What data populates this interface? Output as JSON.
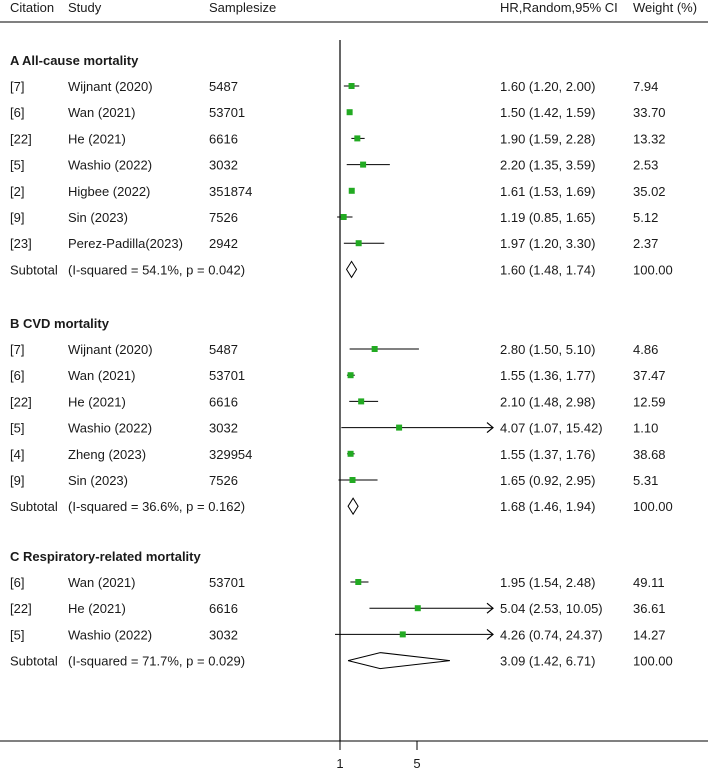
{
  "chart_data": {
    "type": "forest",
    "headers": {
      "citation": "Citation",
      "study": "Study",
      "samplesize": "Samplesize",
      "effect": "HR,Random,95% CI",
      "weight": "Weight (%)"
    },
    "x_axis": {
      "ticks": [
        1,
        5
      ],
      "reference_line": 1
    },
    "sections": [
      {
        "title": "A  All-cause mortality",
        "studies": [
          {
            "citation": "[7]",
            "study": "Wijnant (2020)",
            "samplesize": "5487",
            "hr": 1.6,
            "lo": 1.2,
            "hi": 2.0,
            "ci_text": "1.60 (1.20, 2.00)",
            "weight": "7.94"
          },
          {
            "citation": "[6]",
            "study": "Wan (2021)",
            "samplesize": "53701",
            "hr": 1.5,
            "lo": 1.42,
            "hi": 1.59,
            "ci_text": "1.50 (1.42, 1.59)",
            "weight": "33.70"
          },
          {
            "citation": "[22]",
            "study": "He (2021)",
            "samplesize": "6616",
            "hr": 1.9,
            "lo": 1.59,
            "hi": 2.28,
            "ci_text": "1.90 (1.59, 2.28)",
            "weight": "13.32"
          },
          {
            "citation": "[5]",
            "study": "Washio (2022)",
            "samplesize": "3032",
            "hr": 2.2,
            "lo": 1.35,
            "hi": 3.59,
            "ci_text": "2.20 (1.35, 3.59)",
            "weight": "2.53"
          },
          {
            "citation": "[2]",
            "study": "Higbee (2022)",
            "samplesize": "351874",
            "hr": 1.61,
            "lo": 1.53,
            "hi": 1.69,
            "ci_text": "1.61 (1.53, 1.69)",
            "weight": "35.02"
          },
          {
            "citation": "[9]",
            "study": "Sin (2023)",
            "samplesize": "7526",
            "hr": 1.19,
            "lo": 0.85,
            "hi": 1.65,
            "ci_text": "1.19 (0.85, 1.65)",
            "weight": "5.12"
          },
          {
            "citation": "[23]",
            "study": "Perez-Padilla(2023)",
            "samplesize": "2942",
            "hr": 1.97,
            "lo": 1.2,
            "hi": 3.3,
            "ci_text": "1.97 (1.20, 3.30)",
            "weight": "2.37"
          }
        ],
        "subtotal": {
          "label": "Subtotal",
          "stats": "(I-squared = 54.1%, p = 0.042)",
          "hr": 1.6,
          "lo": 1.48,
          "hi": 1.74,
          "ci_text": "1.60 (1.48, 1.74)",
          "weight": "100.00"
        }
      },
      {
        "title": "B  CVD mortality",
        "studies": [
          {
            "citation": "[7]",
            "study": "Wijnant (2020)",
            "samplesize": "5487",
            "hr": 2.8,
            "lo": 1.5,
            "hi": 5.1,
            "ci_text": "2.80 (1.50, 5.10)",
            "weight": "4.86"
          },
          {
            "citation": "[6]",
            "study": "Wan (2021)",
            "samplesize": "53701",
            "hr": 1.55,
            "lo": 1.36,
            "hi": 1.77,
            "ci_text": "1.55 (1.36, 1.77)",
            "weight": "37.47"
          },
          {
            "citation": "[22]",
            "study": "He (2021)",
            "samplesize": "6616",
            "hr": 2.1,
            "lo": 1.48,
            "hi": 2.98,
            "ci_text": "2.10 (1.48, 2.98)",
            "weight": "12.59"
          },
          {
            "citation": "[5]",
            "study": "Washio (2022)",
            "samplesize": "3032",
            "hr": 4.07,
            "lo": 1.07,
            "hi": 15.42,
            "ci_text": "4.07 (1.07, 15.42)",
            "weight": "1.10"
          },
          {
            "citation": "[4]",
            "study": "Zheng (2023)",
            "samplesize": "329954",
            "hr": 1.55,
            "lo": 1.37,
            "hi": 1.76,
            "ci_text": "1.55 (1.37, 1.76)",
            "weight": "38.68"
          },
          {
            "citation": "[9]",
            "study": "Sin (2023)",
            "samplesize": "7526",
            "hr": 1.65,
            "lo": 0.92,
            "hi": 2.95,
            "ci_text": "1.65 (0.92, 2.95)",
            "weight": "5.31"
          }
        ],
        "subtotal": {
          "label": "Subtotal",
          "stats": "(I-squared = 36.6%, p = 0.162)",
          "hr": 1.68,
          "lo": 1.46,
          "hi": 1.94,
          "ci_text": "1.68 (1.46, 1.94)",
          "weight": "100.00"
        }
      },
      {
        "title": "C  Respiratory-related mortality",
        "studies": [
          {
            "citation": "[6]",
            "study": "Wan (2021)",
            "samplesize": "53701",
            "hr": 1.95,
            "lo": 1.54,
            "hi": 2.48,
            "ci_text": "1.95 (1.54, 2.48)",
            "weight": "49.11"
          },
          {
            "citation": "[22]",
            "study": "He (2021)",
            "samplesize": "6616",
            "hr": 5.04,
            "lo": 2.53,
            "hi": 10.05,
            "ci_text": "5.04 (2.53, 10.05)",
            "weight": "36.61"
          },
          {
            "citation": "[5]",
            "study": "Washio (2022)",
            "samplesize": "3032",
            "hr": 4.26,
            "lo": 0.74,
            "hi": 24.37,
            "ci_text": "4.26 (0.74, 24.37)",
            "weight": "14.27"
          }
        ],
        "subtotal": {
          "label": "Subtotal",
          "stats": "(I-squared = 71.7%, p = 0.029)",
          "hr": 3.09,
          "lo": 1.42,
          "hi": 6.71,
          "ci_text": "3.09 (1.42, 6.71)",
          "weight": "100.00"
        }
      }
    ]
  },
  "colors": {
    "point": "#22aa22",
    "line": "#000000",
    "text": "#1a1a1a"
  }
}
